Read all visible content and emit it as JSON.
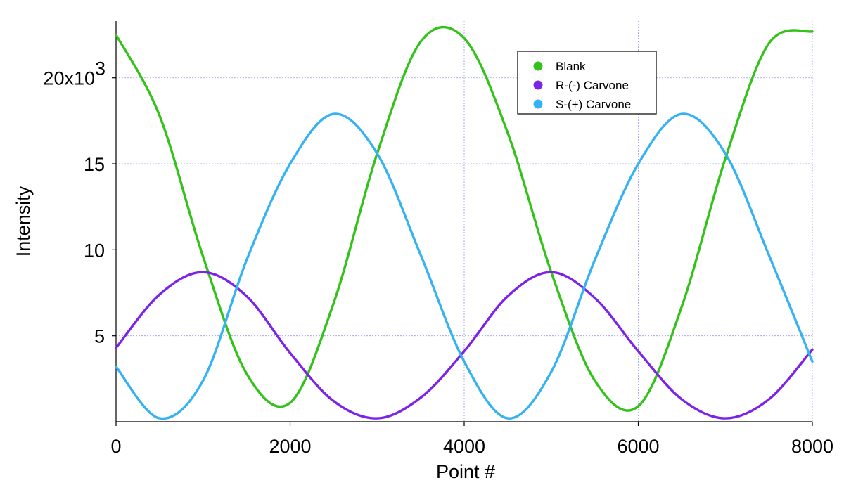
{
  "chart_data": {
    "type": "line",
    "title": "",
    "xlabel": "Point #",
    "ylabel": "Intensity",
    "xlim": [
      0,
      8000
    ],
    "ylim": [
      0,
      23300
    ],
    "x_ticks": [
      0,
      2000,
      4000,
      6000,
      8000
    ],
    "x_tick_labels": [
      "0",
      "2000",
      "4000",
      "6000",
      "8000"
    ],
    "y_ticks": [
      5000,
      10000,
      15000,
      20000
    ],
    "y_tick_labels": [
      "5",
      "10",
      "15",
      "20x10"
    ],
    "y_exponent": "3",
    "grid": true,
    "legend_position": "top-right",
    "x": [
      0,
      500,
      1000,
      1500,
      2000,
      2500,
      3000,
      3500,
      4000,
      4500,
      5000,
      5500,
      6000,
      6500,
      7000,
      7500,
      8000
    ],
    "series": [
      {
        "name": "Blank",
        "color": "#33c21a",
        "values": [
          22500,
          17800,
          9600,
          2800,
          1100,
          6900,
          15600,
          22100,
          22300,
          16800,
          8700,
          2400,
          900,
          6700,
          15300,
          22000,
          22700
        ]
      },
      {
        "name": "R-(-) Carvone",
        "color": "#7d22e8",
        "values": [
          4300,
          7400,
          8700,
          7300,
          4000,
          1200,
          200,
          1400,
          4100,
          7300,
          8700,
          7200,
          4100,
          1300,
          200,
          1300,
          4200
        ]
      },
      {
        "name": "S-(+) Carvone",
        "color": "#35b2f2",
        "values": [
          3200,
          200,
          2400,
          9400,
          15000,
          17900,
          15600,
          9700,
          3500,
          200,
          2900,
          9400,
          15000,
          17900,
          15600,
          9700,
          3500
        ]
      }
    ]
  }
}
